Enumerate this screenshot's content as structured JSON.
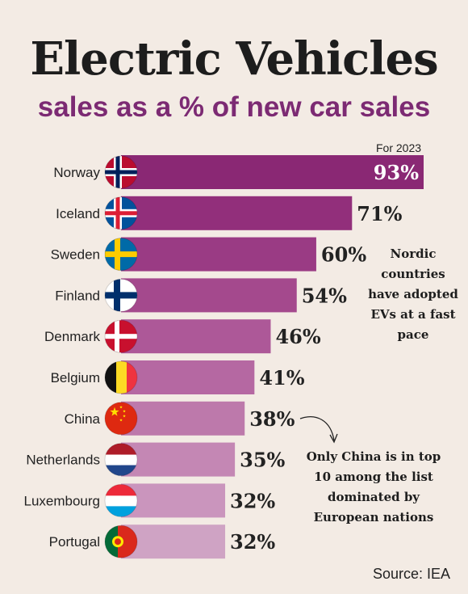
{
  "header": {
    "title": "Electric Vehicles",
    "subtitle": "sales as a % of new car sales",
    "year_note": "For 2023"
  },
  "chart_data": {
    "type": "bar",
    "orientation": "horizontal",
    "title": "Electric Vehicles",
    "subtitle": "sales as a % of new car sales",
    "categories": [
      "Norway",
      "Iceland",
      "Sweden",
      "Finland",
      "Denmark",
      "Belgium",
      "China",
      "Netherlands",
      "Luxembourg",
      "Portugal"
    ],
    "values": [
      93,
      71,
      60,
      54,
      46,
      41,
      38,
      35,
      32,
      32
    ],
    "value_labels": [
      "93%",
      "71%",
      "60%",
      "54%",
      "46%",
      "41%",
      "38%",
      "35%",
      "32%",
      "32%"
    ],
    "unit": "%",
    "xlim": [
      0,
      100
    ],
    "grid": false,
    "bar_colors": [
      "#8a2874",
      "#922f7b",
      "#9a3b84",
      "#a4498d",
      "#ad5898",
      "#b568a2",
      "#bd79ab",
      "#c487b4",
      "#ca95bd",
      "#cfa3c4"
    ],
    "flag_icons": [
      "norway-flag-icon",
      "iceland-flag-icon",
      "sweden-flag-icon",
      "finland-flag-icon",
      "denmark-flag-icon",
      "belgium-flag-icon",
      "china-flag-icon",
      "netherlands-flag-icon",
      "luxembourg-flag-icon",
      "portugal-flag-icon"
    ],
    "annotations": [
      "Nordic countries have adopted EVs at a fast pace",
      "Only China is in top 10 among the list dominated by European nations"
    ]
  },
  "notes": {
    "nordic": [
      "Nordic",
      "countries",
      "have adopted",
      "EVs at a fast",
      "pace"
    ],
    "china": [
      "Only China is in top",
      "10 among the list",
      "dominated by",
      "European nations"
    ]
  },
  "footer": {
    "source": "Source: IEA"
  },
  "colors": {
    "background": "#f3ebe4",
    "accent": "#7c2a73",
    "text": "#1d1d1d"
  }
}
